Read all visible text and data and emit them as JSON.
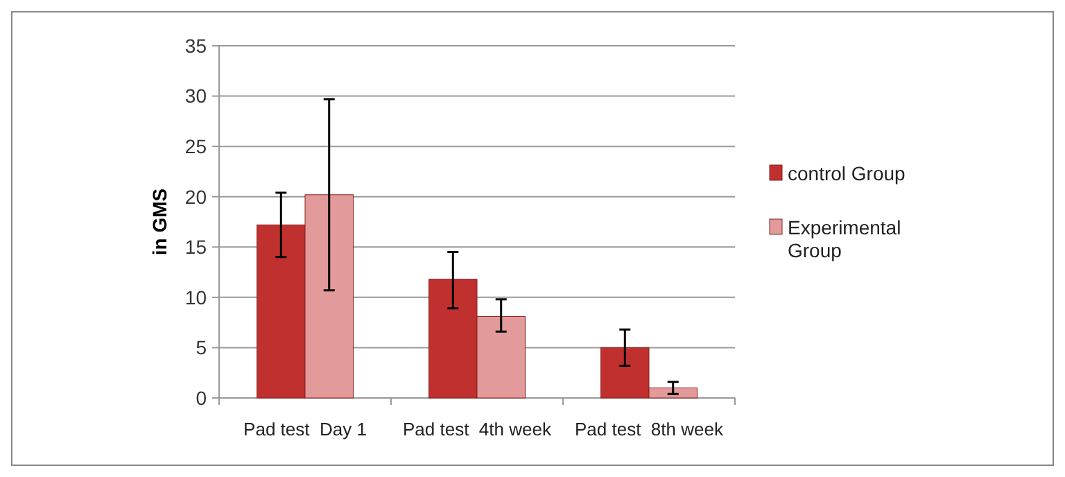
{
  "chart_data": {
    "type": "bar",
    "ylabel": "in GMS",
    "categories": [
      "Pad test  Day 1",
      "Pad test  4th week",
      "Pad test  8th week"
    ],
    "series": [
      {
        "name": "control Group",
        "color": "#c0302f",
        "values": [
          17.2,
          11.8,
          5.0
        ],
        "errors": [
          [
            14.0,
            20.4
          ],
          [
            8.9,
            14.5
          ],
          [
            3.2,
            6.8
          ]
        ]
      },
      {
        "name": "Experimental Group",
        "color": "#e29a9a",
        "values": [
          20.2,
          8.1,
          1.0
        ],
        "errors": [
          [
            10.7,
            29.7
          ],
          [
            6.6,
            9.8
          ],
          [
            0.4,
            1.6
          ]
        ]
      }
    ],
    "ylim": [
      0,
      35
    ],
    "yticks": [
      0,
      5,
      10,
      15,
      20,
      25,
      30,
      35
    ],
    "grid": "y",
    "legend": "right"
  }
}
